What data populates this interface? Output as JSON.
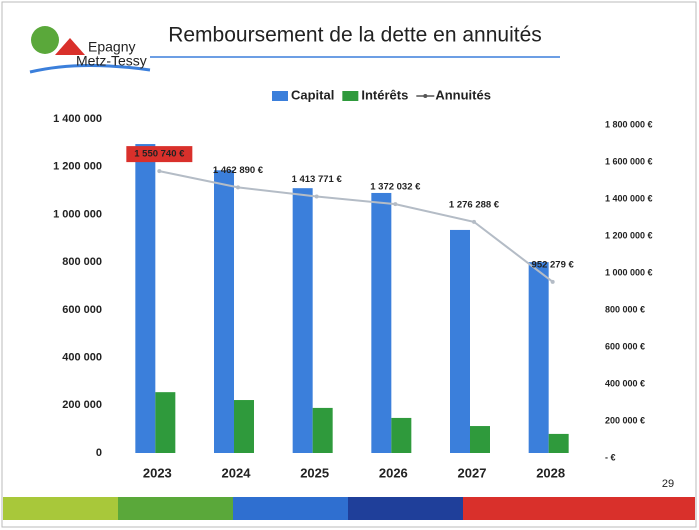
{
  "logo": [
    "Epagny",
    "Metz-Tessy"
  ],
  "page_number": "29",
  "chart_data": {
    "type": "bar",
    "title": "Remboursement de la dette en annuités",
    "categories": [
      "2023",
      "2024",
      "2025",
      "2026",
      "2027",
      "2028"
    ],
    "series": [
      {
        "name": "Capital",
        "color": "#3b7fdb",
        "values": [
          1295000,
          1185000,
          1110000,
          1090000,
          935000,
          800000
        ]
      },
      {
        "name": "Intérêts",
        "color": "#2f9a3c",
        "values": [
          255000,
          222000,
          189000,
          147000,
          113000,
          80000
        ]
      },
      {
        "name": "Annuités",
        "color": "#b4bcc6",
        "type": "line",
        "axis": "y2",
        "values": [
          1550740,
          1462890,
          1413771,
          1372032,
          1276288,
          952279
        ],
        "value_labels": [
          "1 550 740 €",
          "1 462 890 €",
          "1 413 771 €",
          "1 372 032 €",
          "1 276 288 €",
          "952 279 €"
        ],
        "highlight_index": 0
      }
    ],
    "ylim": [
      0,
      1400000
    ],
    "yticks": [
      0,
      {
        "value": 200000,
        "label": "200 000"
      },
      {
        "value": 400000,
        "label": "400 000"
      },
      {
        "value": 600000,
        "label": "600 000"
      },
      {
        "value": 800000,
        "label": "800 000"
      },
      {
        "value": 1000000,
        "label": "1 000 000"
      },
      {
        "value": 1200000,
        "label": "1 200 000"
      },
      {
        "value": 1400000,
        "label": "1 400 000"
      }
    ],
    "y2lim": [
      0,
      1800000
    ],
    "y2ticks": [
      {
        "value": 0,
        "label": "- €"
      },
      {
        "value": 200000,
        "label": "200 000 €"
      },
      {
        "value": 400000,
        "label": "400 000 €"
      },
      {
        "value": 600000,
        "label": "600 000 €"
      },
      {
        "value": 800000,
        "label": "800 000 €"
      },
      {
        "value": 1000000,
        "label": "1 000 000 €"
      },
      {
        "value": 1200000,
        "label": "1 200 000 €"
      },
      {
        "value": 1400000,
        "label": "1 400 000 €"
      },
      {
        "value": 1600000,
        "label": "1 600 000 €"
      },
      {
        "value": 1800000,
        "label": "1 800 000 €"
      }
    ],
    "grid": false,
    "legend": "top"
  }
}
